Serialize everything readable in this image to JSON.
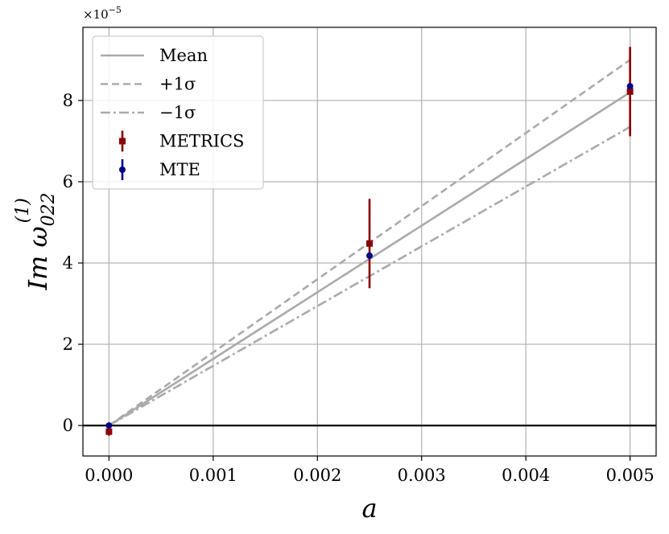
{
  "chart_data": {
    "type": "line",
    "title": "",
    "xlabel": "a",
    "ylabel": "Im ω",
    "ylabel_sup": "(1)",
    "ylabel_sub": "022",
    "y_offset_text": "×10",
    "y_offset_exp": "−5",
    "xlim": [
      -0.00025,
      0.00525
    ],
    "ylim": [
      -0.75,
      9.8
    ],
    "y_scale_note": "values in units of 1e-5",
    "xticks": [
      0.0,
      0.001,
      0.002,
      0.003,
      0.004,
      0.005
    ],
    "xtick_labels": [
      "0.000",
      "0.001",
      "0.002",
      "0.003",
      "0.004",
      "0.005"
    ],
    "yticks": [
      0,
      2,
      4,
      6,
      8
    ],
    "ytick_labels": [
      "0",
      "2",
      "4",
      "6",
      "8"
    ],
    "grid": true,
    "legend_position": "top-left",
    "zero_line": true,
    "series": [
      {
        "name": "Mean",
        "style": "solid",
        "color": "#aaaaaa",
        "x": [
          0.0,
          0.005
        ],
        "y": [
          0.0,
          8.2
        ]
      },
      {
        "name": "+1σ",
        "style": "dashed",
        "color": "#aaaaaa",
        "x": [
          0.0,
          0.005
        ],
        "y": [
          0.0,
          9.0
        ]
      },
      {
        "name": "−1σ",
        "style": "dashdot",
        "color": "#aaaaaa",
        "x": [
          0.0,
          0.005
        ],
        "y": [
          0.0,
          7.35
        ]
      },
      {
        "name": "METRICS",
        "style": "errorbar-square",
        "color": "#8b0000",
        "x": [
          0.0,
          0.0025,
          0.005
        ],
        "y": [
          -0.15,
          4.48,
          8.22
        ],
        "yerr": [
          0.1,
          1.1,
          1.1
        ]
      },
      {
        "name": "MTE",
        "style": "errorbar-circle",
        "color": "#00008b",
        "x": [
          0.0,
          0.0025,
          0.005
        ],
        "y": [
          0.0,
          4.18,
          8.35
        ],
        "yerr": [
          0.0,
          0.0,
          0.0
        ]
      }
    ]
  }
}
